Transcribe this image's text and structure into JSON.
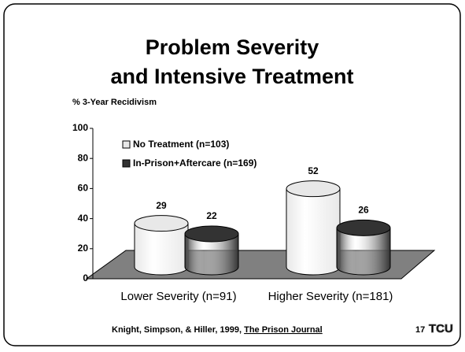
{
  "chart_data": {
    "type": "bar",
    "title_lines": [
      "Problem Severity",
      "and Intensive Treatment"
    ],
    "y_label": "% 3-Year Recidivism",
    "categories": [
      "Lower Severity (n=91)",
      "Higher Severity (n=181)"
    ],
    "series": [
      {
        "name": "No Treatment (n=103)",
        "color": "#e8e8e8",
        "values": [
          29,
          52
        ]
      },
      {
        "name": "In-Prison+Aftercare (n=169)",
        "color": "#333333",
        "values": [
          22,
          26
        ]
      }
    ],
    "ylim": [
      0,
      100
    ],
    "yticks": [
      0,
      20,
      40,
      60,
      80,
      100
    ],
    "footer": {
      "citation": "Knight, Simpson, & Hiller, 1999, ",
      "journal": "The Prison Journal"
    },
    "page_number": "17",
    "logo": "TCU"
  }
}
